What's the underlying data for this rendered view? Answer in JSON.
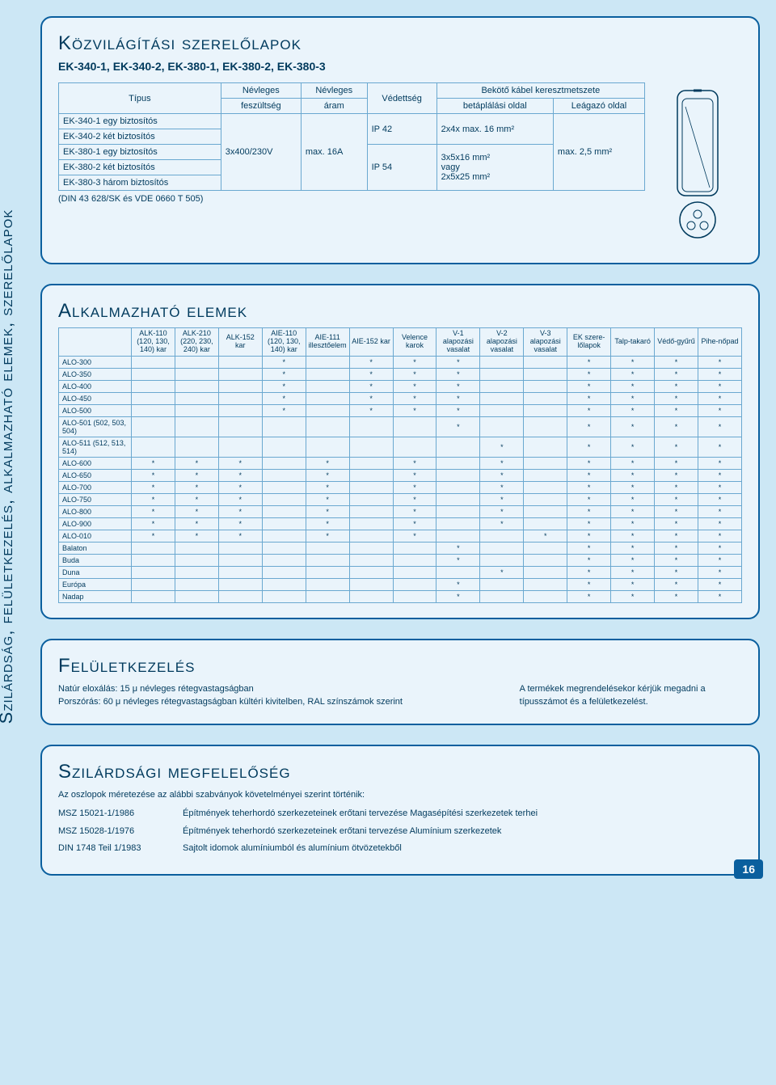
{
  "side_label": "Szilárdság, felületkezelés, alkalmazható elemek, szerelőlapok",
  "page_number": "16",
  "panel1": {
    "title": "Közvilágítási szerelőlapok",
    "subtitle": "EK-340-1, EK-340-2, EK-380-1, EK-380-2, EK-380-3",
    "head": {
      "c0": "Típus",
      "c1a": "Névleges",
      "c1b": "feszültség",
      "c2a": "Névleges",
      "c2b": "áram",
      "c3": "Védettség",
      "c4": "Bekötő kábel keresztmetszete",
      "c4a": "betáplálási oldal",
      "c4b": "Leágazó oldal"
    },
    "rows": [
      "EK-340-1 egy biztosítós",
      "EK-340-2 két biztosítós",
      "EK-380-1 egy biztosítós",
      "EK-380-2 két biztosítós",
      "EK-380-3 három biztosítós"
    ],
    "voltage": "3x400/230V",
    "current": "max. 16A",
    "ip_a": "IP 42",
    "ip_b": "IP 54",
    "cross_a": "2x4x max. 16 mm²",
    "cross_b1": "3x5x16 mm²",
    "cross_b2": "vagy",
    "cross_b3": "2x5x25 mm²",
    "branch": "max. 2,5 mm²",
    "footnote": "(DIN 43 628/SK és VDE 0660 T 505)"
  },
  "panel2": {
    "title": "Alkalmazható elemek",
    "cols": [
      "",
      "ALK-110 (120, 130, 140) kar",
      "ALK-210 (220, 230, 240) kar",
      "ALK-152 kar",
      "AIE-110 (120, 130, 140) kar",
      "AIE-111 illesztőelem",
      "AIE-152 kar",
      "Velence karok",
      "V-1 alapozási vasalat",
      "V-2 alapozási vasalat",
      "V-3 alapozási vasalat",
      "EK szere-lőlapok",
      "Talp-takaró",
      "Védő-gyűrű",
      "Pihe-nőpad"
    ],
    "rows": [
      {
        "n": "ALO-300",
        "v": [
          "",
          "",
          "",
          "*",
          "",
          "*",
          "*",
          "*",
          "",
          "",
          "*",
          "*",
          "*",
          "*"
        ]
      },
      {
        "n": "ALO-350",
        "v": [
          "",
          "",
          "",
          "*",
          "",
          "*",
          "*",
          "*",
          "",
          "",
          "*",
          "*",
          "*",
          "*"
        ]
      },
      {
        "n": "ALO-400",
        "v": [
          "",
          "",
          "",
          "*",
          "",
          "*",
          "*",
          "*",
          "",
          "",
          "*",
          "*",
          "*",
          "*"
        ]
      },
      {
        "n": "ALO-450",
        "v": [
          "",
          "",
          "",
          "*",
          "",
          "*",
          "*",
          "*",
          "",
          "",
          "*",
          "*",
          "*",
          "*"
        ]
      },
      {
        "n": "ALO-500",
        "v": [
          "",
          "",
          "",
          "*",
          "",
          "*",
          "*",
          "*",
          "",
          "",
          "*",
          "*",
          "*",
          "*"
        ]
      },
      {
        "n": "ALO-501 (502, 503, 504)",
        "v": [
          "",
          "",
          "",
          "",
          "",
          "",
          "",
          "*",
          "",
          "",
          "*",
          "*",
          "*",
          "*"
        ]
      },
      {
        "n": "ALO-511 (512, 513, 514)",
        "v": [
          "",
          "",
          "",
          "",
          "",
          "",
          "",
          "",
          "*",
          "",
          "*",
          "*",
          "*",
          "*"
        ]
      },
      {
        "n": "ALO-600",
        "v": [
          "*",
          "*",
          "*",
          "",
          "*",
          "",
          "*",
          "",
          "*",
          "",
          "*",
          "*",
          "*",
          "*"
        ]
      },
      {
        "n": "ALO-650",
        "v": [
          "*",
          "*",
          "*",
          "",
          "*",
          "",
          "*",
          "",
          "*",
          "",
          "*",
          "*",
          "*",
          "*"
        ]
      },
      {
        "n": "ALO-700",
        "v": [
          "*",
          "*",
          "*",
          "",
          "*",
          "",
          "*",
          "",
          "*",
          "",
          "*",
          "*",
          "*",
          "*"
        ]
      },
      {
        "n": "ALO-750",
        "v": [
          "*",
          "*",
          "*",
          "",
          "*",
          "",
          "*",
          "",
          "*",
          "",
          "*",
          "*",
          "*",
          "*"
        ]
      },
      {
        "n": "ALO-800",
        "v": [
          "*",
          "*",
          "*",
          "",
          "*",
          "",
          "*",
          "",
          "*",
          "",
          "*",
          "*",
          "*",
          "*"
        ]
      },
      {
        "n": "ALO-900",
        "v": [
          "*",
          "*",
          "*",
          "",
          "*",
          "",
          "*",
          "",
          "*",
          "",
          "*",
          "*",
          "*",
          "*"
        ]
      },
      {
        "n": "ALO-010",
        "v": [
          "*",
          "*",
          "*",
          "",
          "*",
          "",
          "*",
          "",
          "",
          "*",
          "*",
          "*",
          "*",
          "*"
        ]
      },
      {
        "n": "Balaton",
        "v": [
          "",
          "",
          "",
          "",
          "",
          "",
          "",
          "*",
          "",
          "",
          "*",
          "*",
          "*",
          "*"
        ]
      },
      {
        "n": "Buda",
        "v": [
          "",
          "",
          "",
          "",
          "",
          "",
          "",
          "*",
          "",
          "",
          "*",
          "*",
          "*",
          "*"
        ]
      },
      {
        "n": "Duna",
        "v": [
          "",
          "",
          "",
          "",
          "",
          "",
          "",
          "",
          "*",
          "",
          "*",
          "*",
          "*",
          "*"
        ]
      },
      {
        "n": "Európa",
        "v": [
          "",
          "",
          "",
          "",
          "",
          "",
          "",
          "*",
          "",
          "",
          "*",
          "*",
          "*",
          "*"
        ]
      },
      {
        "n": "Nadap",
        "v": [
          "",
          "",
          "",
          "",
          "",
          "",
          "",
          "*",
          "",
          "",
          "*",
          "*",
          "*",
          "*"
        ]
      }
    ]
  },
  "panel3": {
    "title": "Felületkezelés",
    "l1_label": "Natúr eloxálás:",
    "l1": "15 μ névleges rétegvastagságban",
    "l2_label": "Porszórás:",
    "l2": "60 μ névleges rétegvastagságban kültéri kivitelben, RAL színszámok szerint",
    "right": "A termékek megrendelésekor kérjük megadni a típusszámot és a felületkezelést."
  },
  "panel4": {
    "title": "Szilárdsági megfelelőség",
    "intro": "Az oszlopok méretezése az alábbi szabványok követelményei szerint történik:",
    "rows": [
      {
        "k": "MSZ 15021-1/1986",
        "v": "Építmények teherhordó szerkezeteinek erőtani tervezése Magasépítési szerkezetek terhei"
      },
      {
        "k": "MSZ 15028-1/1976",
        "v": "Építmények teherhordó szerkezeteinek erőtani tervezése Alumínium szerkezetek"
      },
      {
        "k": "DIN 1748 Teil 1/1983",
        "v": "Sajtolt idomok alumíniumból és alumínium ötvözetekből"
      }
    ]
  }
}
